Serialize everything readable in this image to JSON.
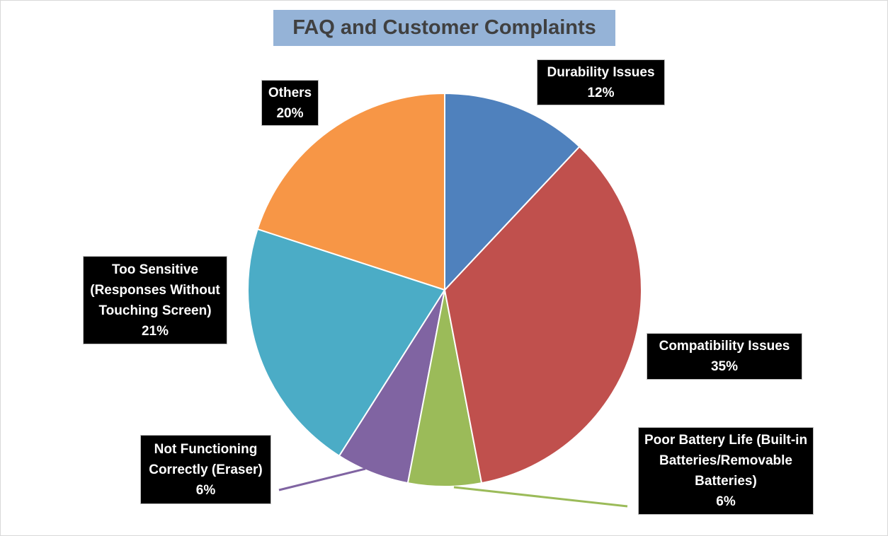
{
  "chart_data": {
    "type": "pie",
    "title": "FAQ and Customer Complaints",
    "categories": [
      "Durability Issues",
      "Compatibility Issues",
      "Poor Battery Life (Built-in Batteries/Removable Batteries)",
      "Not Functioning Correctly (Eraser)",
      "Too Sensitive (Responses Without Touching Screen)",
      "Others"
    ],
    "values": [
      12,
      35,
      6,
      6,
      21,
      20
    ],
    "value_labels": [
      "12%",
      "35%",
      "6%",
      "6%",
      "21%",
      "20%"
    ],
    "colors": [
      "#4f81bd",
      "#c0504d",
      "#9bbb59",
      "#8064a2",
      "#4bacc6",
      "#f79646"
    ]
  }
}
